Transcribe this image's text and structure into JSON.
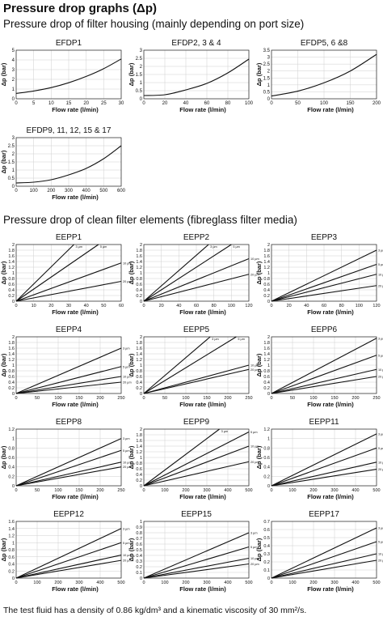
{
  "page": {
    "heading": "Pressure drop graphs (Δp)",
    "subheading_housing": "Pressure drop of filter housing (mainly depending on port size)",
    "subheading_elements": "Pressure drop of clean filter elements (fibreglass filter media)",
    "footnote": "The test fluid has a density of 0.86 kg/dm³ and a kinematic viscosity of 30 mm²/s."
  },
  "chart_data": [
    {
      "id": "efdp1",
      "type": "line",
      "title": "EFDP1",
      "xlabel": "Flow rate (l/min)",
      "ylabel": "Δp (bar)",
      "xlim": [
        0,
        30
      ],
      "ylim": [
        0,
        5
      ],
      "xticks": [
        0,
        5,
        10,
        15,
        20,
        25,
        30
      ],
      "yticks": [
        0,
        1,
        2,
        3,
        4,
        5
      ],
      "grid": true,
      "series": [
        {
          "name": "",
          "x": [
            0,
            5,
            10,
            15,
            20,
            25,
            30
          ],
          "y": [
            0.55,
            0.8,
            1.15,
            1.65,
            2.3,
            3.1,
            4.1
          ]
        }
      ]
    },
    {
      "id": "efdp2",
      "type": "line",
      "title": "EFDP2, 3 & 4",
      "xlabel": "Flow rate (l/min)",
      "ylabel": "Δp (bar)",
      "xlim": [
        0,
        100
      ],
      "ylim": [
        0,
        3
      ],
      "xticks": [
        0,
        20,
        40,
        60,
        80,
        100
      ],
      "yticks": [
        0,
        0.5,
        1,
        1.5,
        2,
        2.5,
        3
      ],
      "grid": true,
      "series": [
        {
          "name": "",
          "x": [
            0,
            20,
            40,
            60,
            80,
            100
          ],
          "y": [
            0.2,
            0.25,
            0.55,
            0.95,
            1.6,
            2.45
          ]
        }
      ]
    },
    {
      "id": "efdp5",
      "type": "line",
      "title": "EFDP5, 6 &8",
      "xlabel": "Flow rate (l/min)",
      "ylabel": "Δp (bar)",
      "xlim": [
        0,
        200
      ],
      "ylim": [
        0,
        3.5
      ],
      "xticks": [
        0,
        50,
        100,
        150,
        200
      ],
      "yticks": [
        0,
        0.5,
        1,
        1.5,
        2,
        2.5,
        3,
        3.5
      ],
      "grid": true,
      "series": [
        {
          "name": "",
          "x": [
            0,
            50,
            100,
            150,
            200
          ],
          "y": [
            0.2,
            0.55,
            1.15,
            2,
            3.2
          ]
        }
      ]
    },
    {
      "id": "efdp9",
      "type": "line",
      "title": "EFDP9, 11, 12, 15 & 17",
      "xlabel": "Flow rate (l/min)",
      "ylabel": "Δp (bar)",
      "xlim": [
        0,
        600
      ],
      "ylim": [
        0,
        3
      ],
      "xticks": [
        0,
        100,
        200,
        300,
        400,
        500,
        600
      ],
      "yticks": [
        0,
        0.5,
        1,
        1.5,
        2,
        2.5,
        3
      ],
      "grid": true,
      "series": [
        {
          "name": "",
          "x": [
            0,
            100,
            200,
            300,
            400,
            500,
            600
          ],
          "y": [
            0.2,
            0.25,
            0.4,
            0.7,
            1.1,
            1.7,
            2.5
          ]
        }
      ]
    },
    {
      "id": "eepp1",
      "type": "line",
      "title": "EEPP1",
      "xlabel": "Flow rate (l/min)",
      "ylabel": "Δp (bar)",
      "xlim": [
        0,
        60
      ],
      "ylim": [
        0,
        2
      ],
      "xticks": [
        0,
        10,
        20,
        30,
        40,
        50,
        60
      ],
      "yticks": [
        0,
        0.2,
        0.4,
        0.6,
        0.8,
        1,
        1.2,
        1.4,
        1.6,
        1.8,
        2
      ],
      "grid": true,
      "series": [
        {
          "name": "3 µm",
          "x": [
            0,
            33
          ],
          "y": [
            0,
            2
          ]
        },
        {
          "name": "5 µm",
          "x": [
            0,
            47
          ],
          "y": [
            0,
            2
          ]
        },
        {
          "name": "10 µm",
          "x": [
            0,
            60
          ],
          "y": [
            0,
            1.35
          ]
        },
        {
          "name": "20 µm",
          "x": [
            0,
            60
          ],
          "y": [
            0,
            0.7
          ]
        }
      ]
    },
    {
      "id": "eepp2",
      "type": "line",
      "title": "EEPP2",
      "xlabel": "Flow rate (l/min)",
      "ylabel": "Δp (bar)",
      "xlim": [
        0,
        120
      ],
      "ylim": [
        0,
        2
      ],
      "xticks": [
        0,
        20,
        40,
        60,
        80,
        100,
        120
      ],
      "yticks": [
        0,
        0.2,
        0.4,
        0.6,
        0.8,
        1,
        1.2,
        1.4,
        1.6,
        1.8,
        2
      ],
      "grid": true,
      "series": [
        {
          "name": "3 µm",
          "x": [
            0,
            74
          ],
          "y": [
            0,
            2
          ]
        },
        {
          "name": "5 µm",
          "x": [
            0,
            100
          ],
          "y": [
            0,
            2
          ]
        },
        {
          "name": "10 µm",
          "x": [
            0,
            120
          ],
          "y": [
            0,
            1.5
          ]
        },
        {
          "name": "20 µm",
          "x": [
            0,
            120
          ],
          "y": [
            0,
            0.95
          ]
        }
      ]
    },
    {
      "id": "eepp3",
      "type": "line",
      "title": "EEPP3",
      "xlabel": "Flow rate (l/min)",
      "ylabel": "Δp (bar)",
      "xlim": [
        0,
        120
      ],
      "ylim": [
        0,
        2
      ],
      "xticks": [
        0,
        20,
        40,
        60,
        80,
        100,
        120
      ],
      "yticks": [
        0,
        0.2,
        0.4,
        0.6,
        0.8,
        1,
        1.2,
        1.4,
        1.6,
        1.8,
        2
      ],
      "grid": true,
      "series": [
        {
          "name": "3 µm",
          "x": [
            0,
            120
          ],
          "y": [
            0,
            1.8
          ]
        },
        {
          "name": "5 µm",
          "x": [
            0,
            120
          ],
          "y": [
            0,
            1.3
          ]
        },
        {
          "name": "10 µm",
          "x": [
            0,
            120
          ],
          "y": [
            0,
            0.95
          ]
        },
        {
          "name": "20 µm",
          "x": [
            0,
            120
          ],
          "y": [
            0,
            0.55
          ]
        }
      ]
    },
    {
      "id": "eepp4",
      "type": "line",
      "title": "EEPP4",
      "xlabel": "Flow rate (l/min)",
      "ylabel": "Δp (bar)",
      "xlim": [
        0,
        250
      ],
      "ylim": [
        0,
        2
      ],
      "xticks": [
        0,
        50,
        100,
        150,
        200,
        250
      ],
      "yticks": [
        0,
        0.2,
        0.4,
        0.6,
        0.8,
        1,
        1.2,
        1.4,
        1.6,
        1.8,
        2
      ],
      "grid": true,
      "series": [
        {
          "name": "3 µm",
          "x": [
            0,
            250
          ],
          "y": [
            0,
            1.6
          ]
        },
        {
          "name": "5 µm",
          "x": [
            0,
            250
          ],
          "y": [
            0,
            0.95
          ]
        },
        {
          "name": "10 µm",
          "x": [
            0,
            250
          ],
          "y": [
            0,
            0.6
          ]
        },
        {
          "name": "20 µm",
          "x": [
            0,
            250
          ],
          "y": [
            0,
            0.4
          ]
        }
      ]
    },
    {
      "id": "eepp5",
      "type": "line",
      "title": "EEPP5",
      "xlabel": "Flow rate (l/min)",
      "ylabel": "Δp (bar)",
      "xlim": [
        0,
        250
      ],
      "ylim": [
        0,
        2
      ],
      "xticks": [
        0,
        50,
        100,
        150,
        200,
        250
      ],
      "yticks": [
        0,
        0.2,
        0.4,
        0.6,
        0.8,
        1,
        1.2,
        1.4,
        1.6,
        1.8,
        2
      ],
      "grid": true,
      "series": [
        {
          "name": "3 µm",
          "x": [
            0,
            158
          ],
          "y": [
            0,
            2
          ]
        },
        {
          "name": "5 µm",
          "x": [
            0,
            220
          ],
          "y": [
            0,
            2
          ]
        },
        {
          "name": "10 µm",
          "x": [
            0,
            250
          ],
          "y": [
            0,
            1.0
          ]
        },
        {
          "name": "20 µm",
          "x": [
            0,
            250
          ],
          "y": [
            0,
            0.85
          ]
        }
      ]
    },
    {
      "id": "eepp6",
      "type": "line",
      "title": "EEPP6",
      "xlabel": "Flow rate (l/min)",
      "ylabel": "Δp (bar)",
      "xlim": [
        0,
        250
      ],
      "ylim": [
        0,
        2
      ],
      "xticks": [
        0,
        50,
        100,
        150,
        200,
        250
      ],
      "yticks": [
        0,
        0.2,
        0.4,
        0.6,
        0.8,
        1,
        1.2,
        1.4,
        1.6,
        1.8,
        2
      ],
      "grid": true,
      "series": [
        {
          "name": "3 µm",
          "x": [
            0,
            250
          ],
          "y": [
            0,
            1.95
          ]
        },
        {
          "name": "5 µm",
          "x": [
            0,
            250
          ],
          "y": [
            0,
            1.35
          ]
        },
        {
          "name": "10 µm",
          "x": [
            0,
            250
          ],
          "y": [
            0,
            0.85
          ]
        },
        {
          "name": "20 µm",
          "x": [
            0,
            250
          ],
          "y": [
            0,
            0.6
          ]
        }
      ]
    },
    {
      "id": "eepp8",
      "type": "line",
      "title": "EEPP8",
      "xlabel": "Flow rate (l/min)",
      "ylabel": "Δp (bar)",
      "xlim": [
        0,
        250
      ],
      "ylim": [
        0,
        1.2
      ],
      "xticks": [
        0,
        50,
        100,
        150,
        200,
        250
      ],
      "yticks": [
        0,
        0.2,
        0.4,
        0.6,
        0.8,
        1,
        1.2
      ],
      "grid": true,
      "series": [
        {
          "name": "3 µm",
          "x": [
            0,
            250
          ],
          "y": [
            0,
            1.0
          ]
        },
        {
          "name": "5 µm",
          "x": [
            0,
            250
          ],
          "y": [
            0,
            0.75
          ]
        },
        {
          "name": "10 µm",
          "x": [
            0,
            250
          ],
          "y": [
            0,
            0.5
          ]
        },
        {
          "name": "20 µm",
          "x": [
            0,
            250
          ],
          "y": [
            0,
            0.4
          ]
        }
      ]
    },
    {
      "id": "eepp9",
      "type": "line",
      "title": "EEPP9",
      "xlabel": "Flow rate (l/min)",
      "ylabel": "Δp (bar)",
      "xlim": [
        0,
        500
      ],
      "ylim": [
        0,
        2
      ],
      "xticks": [
        0,
        100,
        200,
        300,
        400,
        500
      ],
      "yticks": [
        0,
        0.2,
        0.4,
        0.6,
        0.8,
        1,
        1.2,
        1.4,
        1.6,
        1.8,
        2
      ],
      "grid": true,
      "series": [
        {
          "name": "3 µm",
          "x": [
            0,
            360
          ],
          "y": [
            0,
            2
          ]
        },
        {
          "name": "5 µm",
          "x": [
            0,
            500
          ],
          "y": [
            0,
            1.9
          ]
        },
        {
          "name": "10 µm",
          "x": [
            0,
            500
          ],
          "y": [
            0,
            1.4
          ]
        },
        {
          "name": "20 µm",
          "x": [
            0,
            500
          ],
          "y": [
            0,
            0.85
          ]
        }
      ]
    },
    {
      "id": "eepp11",
      "type": "line",
      "title": "EEPP11",
      "xlabel": "Flow rate (l/min)",
      "ylabel": "Δp (bar)",
      "xlim": [
        0,
        500
      ],
      "ylim": [
        0,
        1.2
      ],
      "xticks": [
        0,
        100,
        200,
        300,
        400,
        500
      ],
      "yticks": [
        0,
        0.2,
        0.4,
        0.6,
        0.8,
        1,
        1.2
      ],
      "grid": true,
      "series": [
        {
          "name": "3 µm",
          "x": [
            0,
            500
          ],
          "y": [
            0,
            1.1
          ]
        },
        {
          "name": "5 µm",
          "x": [
            0,
            500
          ],
          "y": [
            0,
            0.8
          ]
        },
        {
          "name": "10 µm",
          "x": [
            0,
            500
          ],
          "y": [
            0,
            0.5
          ]
        },
        {
          "name": "20 µm",
          "x": [
            0,
            500
          ],
          "y": [
            0,
            0.35
          ]
        }
      ]
    },
    {
      "id": "eepp12",
      "type": "line",
      "title": "EEPP12",
      "xlabel": "Flow rate (l/min)",
      "ylabel": "Δp (bar)",
      "xlim": [
        0,
        500
      ],
      "ylim": [
        0,
        1.6
      ],
      "xticks": [
        0,
        100,
        200,
        300,
        400,
        500
      ],
      "yticks": [
        0,
        0.2,
        0.4,
        0.6,
        0.8,
        1,
        1.2,
        1.4,
        1.6
      ],
      "grid": true,
      "series": [
        {
          "name": "3 µm",
          "x": [
            0,
            500
          ],
          "y": [
            0,
            1.4
          ]
        },
        {
          "name": "5 µm",
          "x": [
            0,
            500
          ],
          "y": [
            0,
            1.0
          ]
        },
        {
          "name": "10 µm",
          "x": [
            0,
            500
          ],
          "y": [
            0,
            0.65
          ]
        },
        {
          "name": "20 µm",
          "x": [
            0,
            500
          ],
          "y": [
            0,
            0.5
          ]
        }
      ]
    },
    {
      "id": "eepp15",
      "type": "line",
      "title": "EEPP15",
      "xlabel": "Flow rate (l/min)",
      "ylabel": "Δp (bar)",
      "xlim": [
        0,
        500
      ],
      "ylim": [
        0,
        1
      ],
      "xticks": [
        0,
        100,
        200,
        300,
        400,
        500
      ],
      "yticks": [
        0,
        0.1,
        0.2,
        0.3,
        0.4,
        0.5,
        0.6,
        0.7,
        0.8,
        0.9,
        1
      ],
      "grid": true,
      "series": [
        {
          "name": "3 µm",
          "x": [
            0,
            500
          ],
          "y": [
            0,
            0.8
          ]
        },
        {
          "name": "5 µm",
          "x": [
            0,
            500
          ],
          "y": [
            0,
            0.55
          ]
        },
        {
          "name": "10 µm",
          "x": [
            0,
            500
          ],
          "y": [
            0,
            0.35
          ]
        },
        {
          "name": "20 µm",
          "x": [
            0,
            500
          ],
          "y": [
            0,
            0.25
          ]
        }
      ]
    },
    {
      "id": "eepp17",
      "type": "line",
      "title": "EEPP17",
      "xlabel": "Flow rate (l/min)",
      "ylabel": "Δp (bar)",
      "xlim": [
        0,
        500
      ],
      "ylim": [
        0,
        0.7
      ],
      "xticks": [
        0,
        100,
        200,
        300,
        400,
        500
      ],
      "yticks": [
        0,
        0.1,
        0.2,
        0.3,
        0.4,
        0.5,
        0.6,
        0.7
      ],
      "grid": true,
      "series": [
        {
          "name": "3 µm",
          "x": [
            0,
            500
          ],
          "y": [
            0,
            0.62
          ]
        },
        {
          "name": "5 µm",
          "x": [
            0,
            500
          ],
          "y": [
            0,
            0.45
          ]
        },
        {
          "name": "10 µm",
          "x": [
            0,
            500
          ],
          "y": [
            0,
            0.3
          ]
        },
        {
          "name": "20 µm",
          "x": [
            0,
            500
          ],
          "y": [
            0,
            0.22
          ]
        }
      ]
    }
  ]
}
